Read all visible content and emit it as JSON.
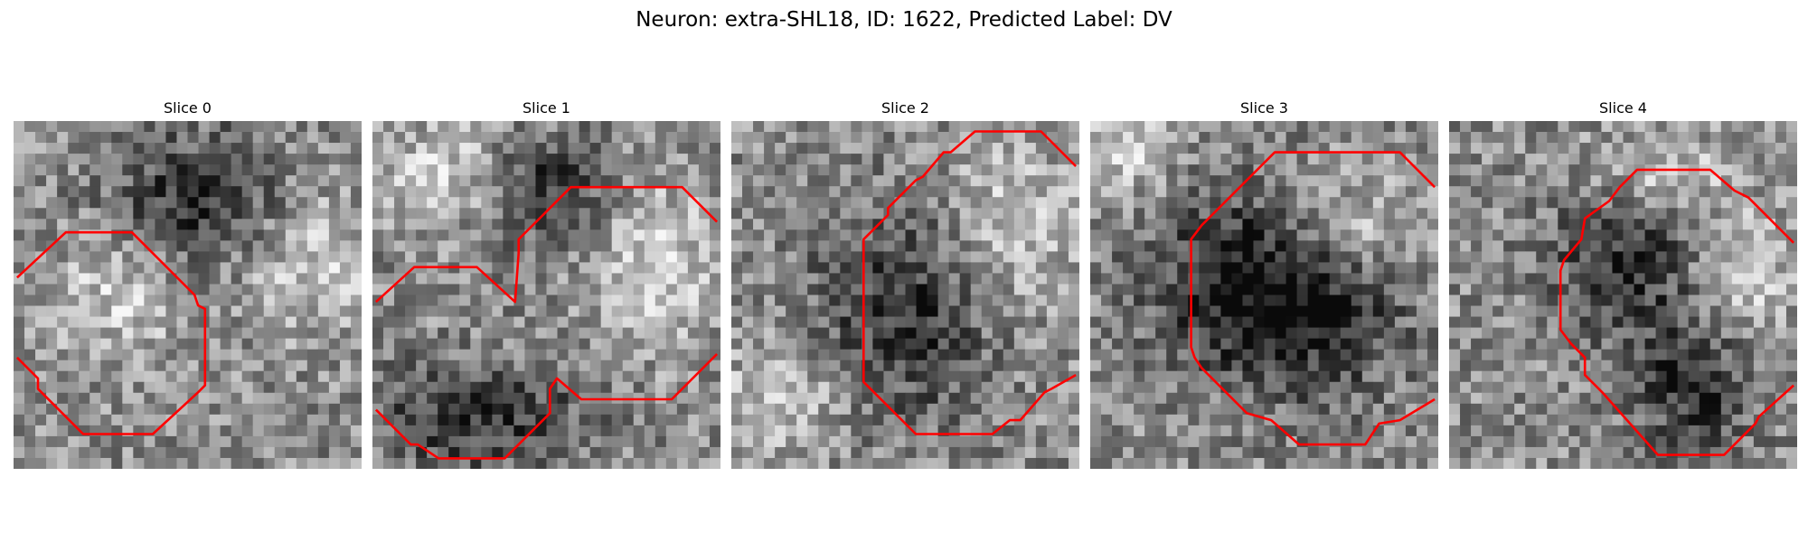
{
  "figure": {
    "title": "Neuron: extra-SHL18, ID: 1622, Predicted Label: DV",
    "outline_color": "#ff0000"
  },
  "slices": [
    {
      "title": "Slice 0",
      "dark_blobs": [
        [
          0.53,
          0.23,
          0.24,
          0.19
        ]
      ],
      "bright_blobs": [
        [
          0.3,
          0.5,
          0.2,
          0.18
        ],
        [
          0.85,
          0.4,
          0.2,
          0.2
        ]
      ],
      "outline": [
        [
          0.01,
          0.45
        ],
        [
          0.15,
          0.32
        ],
        [
          0.34,
          0.32
        ],
        [
          0.52,
          0.5
        ],
        [
          0.53,
          0.53
        ],
        [
          0.55,
          0.54
        ],
        [
          0.55,
          0.57
        ],
        [
          0.55,
          0.76
        ],
        [
          0.53,
          0.78
        ],
        [
          0.4,
          0.9
        ],
        [
          0.2,
          0.9
        ],
        [
          0.07,
          0.77
        ],
        [
          0.07,
          0.74
        ],
        [
          0.01,
          0.68
        ]
      ]
    },
    {
      "title": "Slice 1",
      "dark_blobs": [
        [
          0.5,
          0.2,
          0.17,
          0.15
        ],
        [
          0.3,
          0.85,
          0.3,
          0.15
        ]
      ],
      "bright_blobs": [
        [
          0.82,
          0.4,
          0.18,
          0.25
        ],
        [
          0.2,
          0.15,
          0.2,
          0.15
        ]
      ],
      "outline": [
        [
          0.01,
          0.52
        ],
        [
          0.12,
          0.42
        ],
        [
          0.3,
          0.42
        ],
        [
          0.41,
          0.52
        ],
        [
          0.42,
          0.38
        ],
        [
          0.42,
          0.34
        ],
        [
          0.49,
          0.27
        ],
        [
          0.51,
          0.25
        ],
        [
          0.57,
          0.19
        ],
        [
          0.89,
          0.19
        ],
        [
          0.99,
          0.29
        ]
      ],
      "outline2": [
        [
          0.01,
          0.83
        ],
        [
          0.11,
          0.93
        ],
        [
          0.13,
          0.93
        ],
        [
          0.19,
          0.97
        ],
        [
          0.38,
          0.97
        ],
        [
          0.51,
          0.84
        ],
        [
          0.51,
          0.77
        ],
        [
          0.53,
          0.74
        ],
        [
          0.6,
          0.8
        ],
        [
          0.86,
          0.8
        ],
        [
          0.99,
          0.67
        ]
      ]
    },
    {
      "title": "Slice 2",
      "dark_blobs": [
        [
          0.5,
          0.55,
          0.25,
          0.3
        ]
      ],
      "bright_blobs": [
        [
          0.8,
          0.3,
          0.2,
          0.25
        ],
        [
          0.15,
          0.8,
          0.2,
          0.15
        ]
      ],
      "outline": [
        [
          0.99,
          0.13
        ],
        [
          0.89,
          0.03
        ],
        [
          0.7,
          0.03
        ],
        [
          0.63,
          0.09
        ],
        [
          0.61,
          0.09
        ],
        [
          0.55,
          0.16
        ],
        [
          0.53,
          0.17
        ],
        [
          0.45,
          0.25
        ],
        [
          0.45,
          0.27
        ],
        [
          0.39,
          0.33
        ],
        [
          0.38,
          0.34
        ],
        [
          0.38,
          0.75
        ],
        [
          0.53,
          0.9
        ],
        [
          0.75,
          0.9
        ],
        [
          0.8,
          0.86
        ],
        [
          0.83,
          0.86
        ],
        [
          0.9,
          0.78
        ],
        [
          0.92,
          0.77
        ],
        [
          0.99,
          0.73
        ]
      ]
    },
    {
      "title": "Slice 3",
      "dark_blobs": [
        [
          0.4,
          0.45,
          0.25,
          0.25
        ],
        [
          0.65,
          0.55,
          0.25,
          0.25
        ]
      ],
      "bright_blobs": [
        [
          0.1,
          0.1,
          0.15,
          0.12
        ],
        [
          0.75,
          0.3,
          0.2,
          0.15
        ]
      ],
      "outline": [
        [
          0.99,
          0.19
        ],
        [
          0.89,
          0.09
        ],
        [
          0.53,
          0.09
        ],
        [
          0.32,
          0.3
        ],
        [
          0.29,
          0.34
        ],
        [
          0.29,
          0.65
        ],
        [
          0.3,
          0.68
        ],
        [
          0.32,
          0.71
        ],
        [
          0.45,
          0.84
        ],
        [
          0.52,
          0.86
        ],
        [
          0.6,
          0.93
        ],
        [
          0.79,
          0.93
        ],
        [
          0.83,
          0.87
        ],
        [
          0.89,
          0.86
        ],
        [
          0.99,
          0.8
        ]
      ]
    },
    {
      "title": "Slice 4",
      "dark_blobs": [
        [
          0.7,
          0.75,
          0.18,
          0.2
        ],
        [
          0.5,
          0.4,
          0.2,
          0.2
        ]
      ],
      "bright_blobs": [
        [
          0.6,
          0.15,
          0.2,
          0.12
        ],
        [
          0.85,
          0.45,
          0.15,
          0.2
        ]
      ],
      "outline": [
        [
          0.99,
          0.35
        ],
        [
          0.86,
          0.22
        ],
        [
          0.82,
          0.2
        ],
        [
          0.75,
          0.14
        ],
        [
          0.54,
          0.14
        ],
        [
          0.49,
          0.19
        ],
        [
          0.46,
          0.23
        ],
        [
          0.39,
          0.28
        ],
        [
          0.38,
          0.34
        ],
        [
          0.33,
          0.4
        ],
        [
          0.32,
          0.43
        ],
        [
          0.32,
          0.6
        ],
        [
          0.35,
          0.64
        ],
        [
          0.39,
          0.68
        ],
        [
          0.39,
          0.73
        ],
        [
          0.44,
          0.78
        ],
        [
          0.6,
          0.96
        ],
        [
          0.79,
          0.96
        ],
        [
          0.88,
          0.87
        ],
        [
          0.89,
          0.85
        ],
        [
          0.99,
          0.76
        ]
      ]
    }
  ]
}
